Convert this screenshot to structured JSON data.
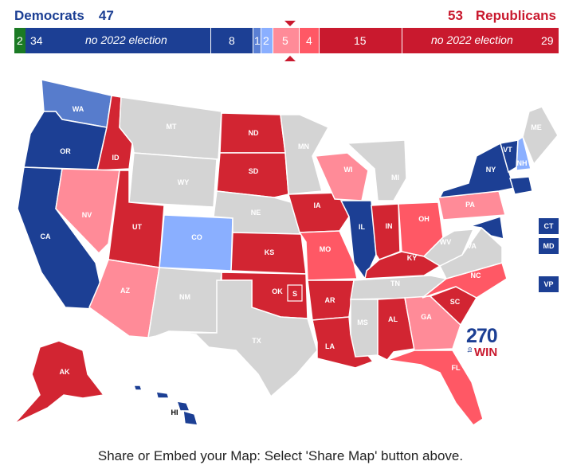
{
  "header": {
    "dem_label": "Democrats",
    "dem_total": "47",
    "rep_total": "53",
    "rep_label": "Republicans"
  },
  "bar": {
    "segments": [
      {
        "id": "ind",
        "label": "2",
        "color": "#1b7a24",
        "seats": 2
      },
      {
        "id": "dem-noelection",
        "label": "34",
        "note": "no 2022 election",
        "color": "#1c3f94",
        "seats": 34
      },
      {
        "id": "dem-safe",
        "label": "8",
        "color": "#1c3f94",
        "seats": 8
      },
      {
        "id": "dem-likely",
        "label": "1",
        "color": "#5a7fd4",
        "seats": 1
      },
      {
        "id": "dem-lean",
        "label": "2",
        "color": "#8aafff",
        "seats": 2
      },
      {
        "id": "rep-lean",
        "label": "5",
        "color": "#ff8b98",
        "seats": 5
      },
      {
        "id": "rep-likely",
        "label": "4",
        "color": "#ff5865",
        "seats": 4
      },
      {
        "id": "rep-safe",
        "label": "15",
        "color": "#c9192e",
        "seats": 15
      },
      {
        "id": "rep-noelection",
        "label": "29",
        "note": "no 2022 election",
        "color": "#c9192e",
        "seats": 29
      }
    ]
  },
  "colors": {
    "dem_safe": "#1c3f94",
    "dem_likely": "#577ccc",
    "dem_lean": "#8aafff",
    "rep_lean": "#ff8b98",
    "rep_likely": "#ff5865",
    "rep_safe": "#d22532",
    "none": "#d4d4d4",
    "ind": "#1b7a24"
  },
  "states": {
    "WA": "WA",
    "OR": "OR",
    "CA": "CA",
    "ID": "ID",
    "NV": "NV",
    "MT": "MT",
    "WY": "WY",
    "UT": "UT",
    "AZ": "AZ",
    "CO": "CO",
    "NM": "NM",
    "ND": "ND",
    "SD": "SD",
    "NE": "NE",
    "KS": "KS",
    "OK": "OK",
    "TX": "TX",
    "MN": "MN",
    "IA": "IA",
    "MO": "MO",
    "AR": "AR",
    "LA": "LA",
    "WI": "WI",
    "IL": "IL",
    "MI": "MI",
    "IN": "IN",
    "OH": "OH",
    "KY": "KY",
    "TN": "TN",
    "MS": "MS",
    "AL": "AL",
    "GA": "GA",
    "FL": "FL",
    "SC": "SC",
    "NC": "NC",
    "VA": "VA",
    "WV": "WV",
    "PA": "PA",
    "NY": "NY",
    "VT": "VT",
    "NH": "NH",
    "ME": "ME",
    "MD": "MD",
    "AK": "AK",
    "HI": "HI",
    "S": "S"
  },
  "small_states": {
    "CT": "CT",
    "MD": "MD",
    "VP": "VP"
  },
  "logo": {
    "number": "270",
    "to": "to",
    "win": "WIN"
  },
  "footer": "Share or Embed your Map: Select 'Share Map' button above."
}
